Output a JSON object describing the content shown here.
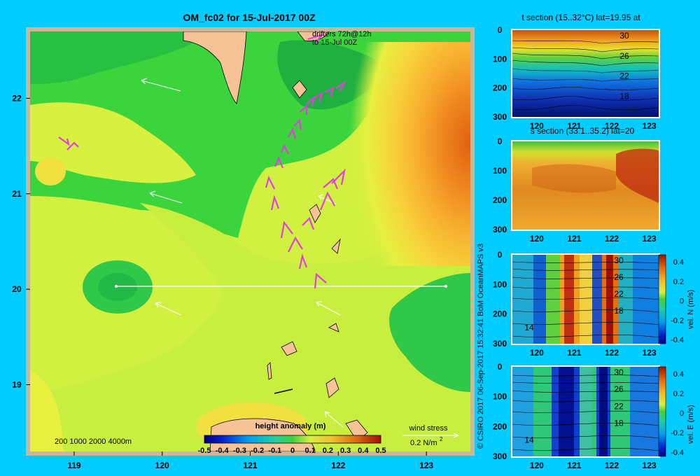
{
  "title": "OM_fc02 for 15-Jul-2017 00Z",
  "credit": "© CSIRO 2017   06-Sep-2017 15:32:41 BoM OceanMAPS v3",
  "drifters": {
    "line1": "drifters 72h@12h",
    "line2": "to 15-Jul 00Z"
  },
  "bathy_legend": "200  1000  2000  4000m",
  "wind": {
    "label": "wind stress",
    "scale": "0.2 N/m",
    "scale_sup": "2"
  },
  "colors": {
    "background": "#00ccff",
    "land": "#f5c396",
    "shelf": "#c8b89a",
    "drifter": "#e040e0"
  },
  "chart_data": [
    {
      "type": "heatmap",
      "title": "",
      "colorbar": {
        "title": "height anomaly (m)",
        "ticks": [
          "-0.5",
          "-0.4",
          "-0.3",
          "-0.2",
          "-0.1",
          "0",
          "0.1",
          "0.2",
          "0.3",
          "0.4",
          "0.5"
        ],
        "range": [
          -0.5,
          0.5
        ]
      },
      "x_ticks": [
        "119",
        "120",
        "121",
        "122",
        "123"
      ],
      "y_ticks": [
        "22",
        "21",
        "20",
        "19"
      ],
      "xlim": [
        118.5,
        123.5
      ],
      "ylim": [
        18.3,
        22.7
      ],
      "section_line": {
        "lat": 20.0,
        "lon_start": 119.5,
        "lon_end": 123.2
      }
    },
    {
      "type": "heatmap",
      "title": "t section (15..32°C) lat=19.95 at",
      "x_ticks": [
        "120",
        "121",
        "122",
        "123"
      ],
      "y_ticks": [
        "0",
        "100",
        "200",
        "300"
      ],
      "contour_labels": [
        "30",
        "26",
        "22",
        "18"
      ]
    },
    {
      "type": "heatmap",
      "title": "s section (33.1..35.2) lat=20",
      "x_ticks": [
        "120",
        "121",
        "122",
        "123"
      ],
      "y_ticks": [
        "0",
        "100",
        "200",
        "300"
      ]
    },
    {
      "type": "heatmap",
      "title": "",
      "colorbar": {
        "label": "vel. N (m/s)",
        "ticks": [
          "0.4",
          "0.2",
          "0",
          "-0.2",
          "-0.4"
        ]
      },
      "x_ticks": [
        "120",
        "121",
        "122",
        "123"
      ],
      "y_ticks": [
        "0",
        "100",
        "200",
        "300"
      ],
      "contour_labels": [
        "30",
        "26",
        "22",
        "18",
        "14"
      ]
    },
    {
      "type": "heatmap",
      "title": "",
      "colorbar": {
        "label": "vel. E (m/s)",
        "ticks": [
          "0.4",
          "0.2",
          "0",
          "-0.2",
          "-0.4"
        ]
      },
      "x_ticks": [
        "120",
        "121",
        "122",
        "123"
      ],
      "y_ticks": [
        "0",
        "100",
        "200",
        "300"
      ],
      "contour_labels": [
        "30",
        "26",
        "22",
        "18",
        "14"
      ]
    }
  ]
}
